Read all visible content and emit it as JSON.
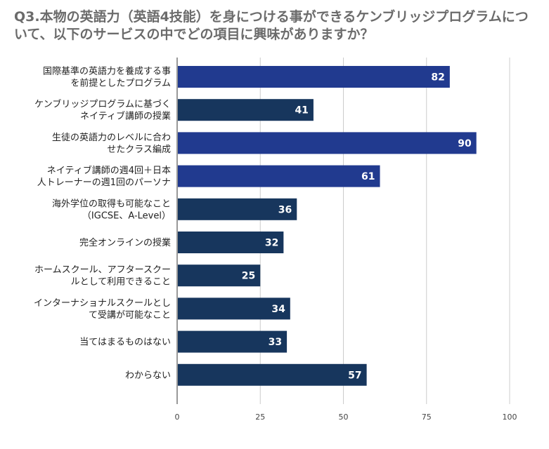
{
  "chart_data": {
    "type": "bar",
    "orientation": "horizontal",
    "title": "Q3.本物の英語力（英語4技能）を身につける事ができるケンブリッジプログラムについて、以下のサービスの中でどの項目に興味がありますか？",
    "categories": [
      [
        "国際基準の英語力を養成する事",
        "を前提としたプログラム"
      ],
      [
        "ケンブリッジプログラムに基づく",
        "ネイティブ講師の授業"
      ],
      [
        "生徒の英語力のレベルに合わ",
        "せたクラス編成"
      ],
      [
        "ネイティブ講師の週4回＋日本",
        "人トレーナーの週1回のパーソナ"
      ],
      [
        "海外学位の取得も可能なこと",
        "（IGCSE、A-Level）"
      ],
      [
        "完全オンラインの授業"
      ],
      [
        "ホームスクール、アフタースクー",
        "ルとして利用できること"
      ],
      [
        "インターナショナルスクールとし",
        "て受講が可能なこと"
      ],
      [
        "当てはまるものはない"
      ],
      [
        "わからない"
      ]
    ],
    "values": [
      82,
      41,
      90,
      61,
      36,
      32,
      25,
      34,
      33,
      57
    ],
    "bar_colors": [
      "#213a8f",
      "#17365d",
      "#213a8f",
      "#213a8f",
      "#17365d",
      "#17365d",
      "#17365d",
      "#17365d",
      "#17365d",
      "#17365d"
    ],
    "x_ticks": [
      "0",
      "25",
      "50",
      "75",
      "100"
    ],
    "xlim": [
      0,
      100
    ],
    "grid": true,
    "legend": "none"
  }
}
